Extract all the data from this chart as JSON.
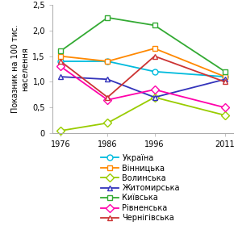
{
  "x": [
    1976,
    1986,
    1996,
    2011
  ],
  "series": [
    {
      "label": "Україна",
      "values": [
        1.4,
        1.4,
        1.2,
        1.1
      ],
      "color": "#00BBDD",
      "marker": "o",
      "markersize": 5
    },
    {
      "label": "Вінницька",
      "values": [
        1.5,
        1.4,
        1.65,
        1.1
      ],
      "color": "#FF8800",
      "marker": "s",
      "markersize": 5
    },
    {
      "label": "Волинська",
      "values": [
        0.05,
        0.2,
        0.7,
        0.35
      ],
      "color": "#99CC00",
      "marker": "D",
      "markersize": 5
    },
    {
      "label": "Житомирська",
      "values": [
        1.1,
        1.05,
        0.7,
        1.05
      ],
      "color": "#3333BB",
      "marker": "^",
      "markersize": 5
    },
    {
      "label": "Київська",
      "values": [
        1.6,
        2.25,
        2.1,
        1.2
      ],
      "color": "#33AA33",
      "marker": "s",
      "markersize": 5
    },
    {
      "label": "Рівненська",
      "values": [
        1.3,
        0.65,
        0.85,
        0.5
      ],
      "color": "#FF00AA",
      "marker": "D",
      "markersize": 5
    },
    {
      "label": "Чернігівська",
      "values": [
        1.4,
        0.7,
        1.5,
        1.0
      ],
      "color": "#CC3333",
      "marker": "^",
      "markersize": 5
    }
  ],
  "ylabel": "Показник на 100 тис.\nнаселення",
  "ylim": [
    0,
    2.5
  ],
  "yticks": [
    0,
    0.5,
    1.0,
    1.5,
    2.0,
    2.5
  ],
  "ytick_labels": [
    "0",
    "0,5",
    "1,0",
    "1,5",
    "2,0",
    "2,5"
  ],
  "xticks": [
    1976,
    1986,
    1996,
    2011
  ],
  "background_color": "#ffffff",
  "linewidth": 1.3,
  "fontsize": 7
}
